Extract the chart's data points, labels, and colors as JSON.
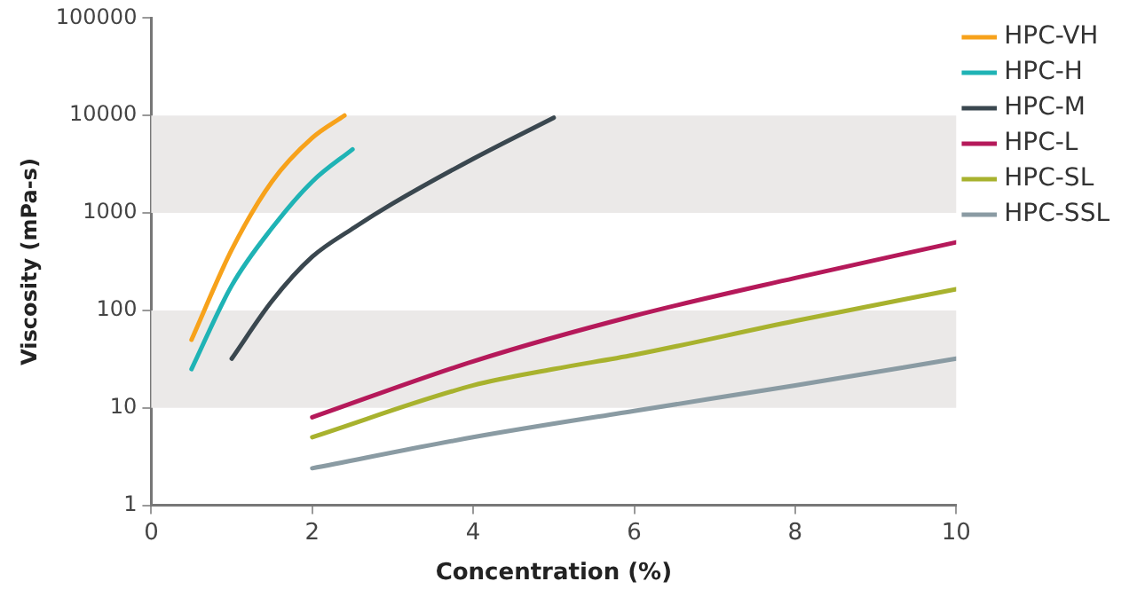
{
  "chart_data": {
    "type": "line",
    "xlabel": "Concentration (%)",
    "ylabel": "Viscosity (mPa-s)",
    "log": "y",
    "grid": false,
    "legend": "right",
    "marker": "none",
    "line_style": "solid",
    "xlim": [
      0,
      10
    ],
    "xticks": [
      0,
      2,
      4,
      6,
      8,
      10
    ],
    "ylim": [
      1,
      100000
    ],
    "yticks": [
      1,
      10,
      100,
      1000,
      10000,
      100000
    ],
    "bands": [
      {
        "axis": "y",
        "from": 10,
        "to": 100,
        "color": "#ebe9e8"
      },
      {
        "axis": "y",
        "from": 1000,
        "to": 10000,
        "color": "#ebe9e8"
      }
    ],
    "series": [
      {
        "name": "HPC-VH",
        "color": "#f7a21b",
        "x": [
          0.5,
          1,
          1.5,
          2,
          2.4
        ],
        "values": [
          50,
          420,
          2100,
          5900,
          10000
        ]
      },
      {
        "name": "HPC-H",
        "color": "#1fb3b5",
        "x": [
          0.5,
          1,
          1.5,
          2,
          2.5
        ],
        "values": [
          25,
          180,
          700,
          2100,
          4500
        ]
      },
      {
        "name": "HPC-M",
        "color": "#3a474f",
        "x": [
          1,
          1.5,
          2,
          2.5,
          3,
          4,
          5
        ],
        "values": [
          32,
          125,
          355,
          690,
          1250,
          3600,
          9500
        ]
      },
      {
        "name": "HPC-L",
        "color": "#b5195a",
        "x": [
          2,
          4,
          6,
          8,
          10
        ],
        "values": [
          8,
          30,
          88,
          215,
          500
        ]
      },
      {
        "name": "HPC-SL",
        "color": "#a8b22e",
        "x": [
          2,
          4,
          5,
          6,
          8,
          10
        ],
        "values": [
          5,
          17,
          25,
          35,
          78,
          165
        ]
      },
      {
        "name": "HPC-SSL",
        "color": "#8a9ba3",
        "x": [
          2,
          4,
          6,
          8,
          10
        ],
        "values": [
          2.4,
          5,
          9.3,
          17,
          32
        ]
      }
    ]
  }
}
